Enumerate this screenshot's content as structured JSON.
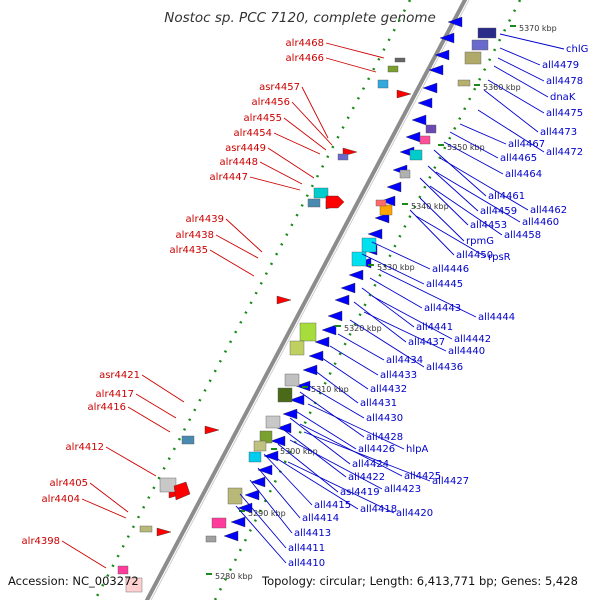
{
  "title": "Nostoc sp. PCC 7120, complete genome",
  "footer": {
    "accession": "Accession: NC_003272",
    "topology": "Topology: circular; Length: 6,413,771 bp; Genes: 5,428"
  },
  "colors": {
    "forward_label": "#cc0000",
    "reverse_label": "#0000cc",
    "backbone": "#8c8c8c",
    "forward_gene": "#ff0000",
    "reverse_gene": "#0000ff"
  },
  "kbp_ticks": [
    "5370 kbp",
    "5360 kbp",
    "5350 kbp",
    "5340 kbp",
    "5330 kbp",
    "5320 kbp",
    "5310 kbp",
    "5300 kbp",
    "5290 kbp",
    "5280 kbp"
  ],
  "forward_labels": [
    "alr4468",
    "alr4466",
    "asr4457",
    "alr4456",
    "alr4455",
    "alr4454",
    "asr4449",
    "alr4448",
    "alr4447",
    "alr4439",
    "alr4438",
    "alr4435",
    "asr4421",
    "alr4417",
    "alr4416",
    "alr4412",
    "alr4405",
    "alr4404",
    "alr4398"
  ],
  "reverse_labels": [
    "chlG",
    "all4479",
    "all4478",
    "dnaK",
    "all4475",
    "all4473",
    "all4472",
    "all4467",
    "all4465",
    "all4464",
    "all4461",
    "all4462",
    "all4459",
    "all4460",
    "all4453",
    "all4458",
    "rpmG",
    "all4450",
    "rpsR",
    "all4446",
    "all4445",
    "all4444",
    "all4443",
    "all4441",
    "all4442",
    "all4437",
    "all4440",
    "all4436",
    "all4434",
    "all4433",
    "all4432",
    "all4431",
    "all4430",
    "all4428",
    "hlpA",
    "all4426",
    "all4424",
    "all4425",
    "all4427",
    "all4422",
    "all4423",
    "asl4419",
    "all4415",
    "all4418",
    "all4420",
    "all4414",
    "all4413",
    "all4411",
    "all4410"
  ]
}
